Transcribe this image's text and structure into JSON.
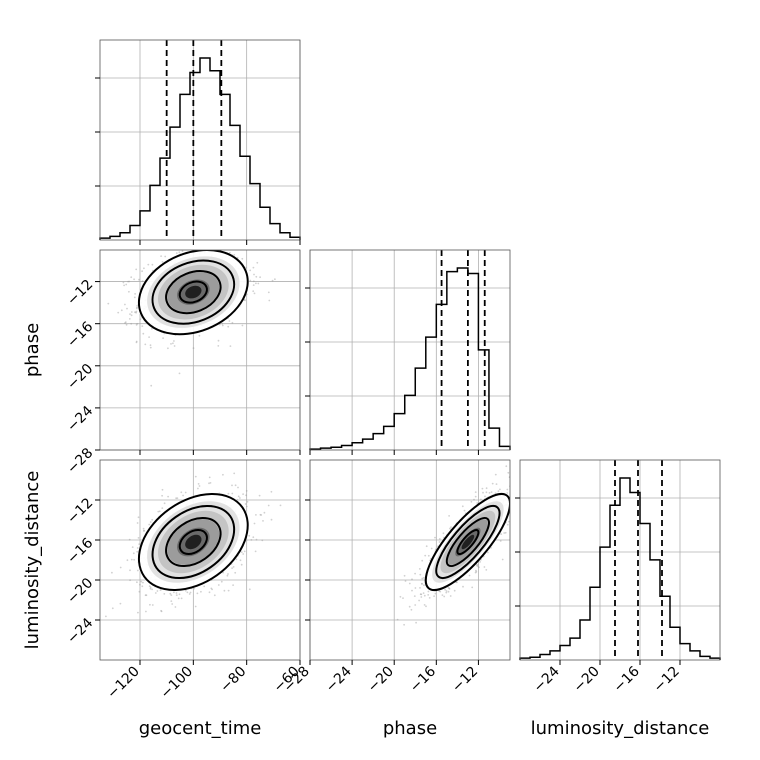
{
  "chart_data": {
    "type": "corner",
    "grid": true,
    "parameters": [
      {
        "name": "geocent_time",
        "range": [
          -135,
          -60
        ],
        "ticks": [
          -120,
          -100,
          -80,
          -60
        ],
        "median": -100,
        "q16": -110,
        "q84": -89.5,
        "sigma": 10.2
      },
      {
        "name": "phase",
        "range": [
          -28,
          -9
        ],
        "ticks": [
          -28,
          -24,
          -20,
          -16,
          -12
        ],
        "median": -13.0,
        "q16": -15.5,
        "q84": -11.4,
        "sigma": 2.0
      },
      {
        "name": "luminosity_distance",
        "range": [
          -28,
          -8
        ],
        "ticks": [
          -24,
          -20,
          -16,
          -12
        ],
        "median": -16.2,
        "q16": -18.5,
        "q84": -13.8,
        "sigma": 2.4
      }
    ],
    "hist_1d": [
      {
        "param": "geocent_time",
        "counts": [
          0.01,
          0.02,
          0.04,
          0.08,
          0.16,
          0.3,
          0.45,
          0.62,
          0.8,
          0.92,
          1.0,
          0.93,
          0.8,
          0.63,
          0.46,
          0.31,
          0.18,
          0.09,
          0.04,
          0.015
        ]
      },
      {
        "param": "phase",
        "counts": [
          0.005,
          0.01,
          0.015,
          0.025,
          0.04,
          0.06,
          0.09,
          0.13,
          0.2,
          0.3,
          0.45,
          0.62,
          0.8,
          0.98,
          1.0,
          0.97,
          0.55,
          0.12,
          0.02
        ]
      },
      {
        "param": "luminosity_distance",
        "counts": [
          0.01,
          0.015,
          0.03,
          0.05,
          0.08,
          0.12,
          0.22,
          0.4,
          0.62,
          0.85,
          1.0,
          0.92,
          0.75,
          0.55,
          0.35,
          0.18,
          0.09,
          0.05,
          0.02,
          0.01
        ]
      }
    ],
    "pairs_2d": [
      {
        "x": "geocent_time",
        "y": "phase",
        "correlation": 0.25
      },
      {
        "x": "geocent_time",
        "y": "luminosity_distance",
        "correlation": 0.35
      },
      {
        "x": "phase",
        "y": "luminosity_distance",
        "correlation": 0.8
      }
    ],
    "contour_levels_sigma": [
      0.5,
      1.0,
      1.5,
      2.0
    ],
    "colors": {
      "lines": "#000000",
      "grid": "#b0b0b0",
      "points": "#9a9a9a"
    }
  }
}
